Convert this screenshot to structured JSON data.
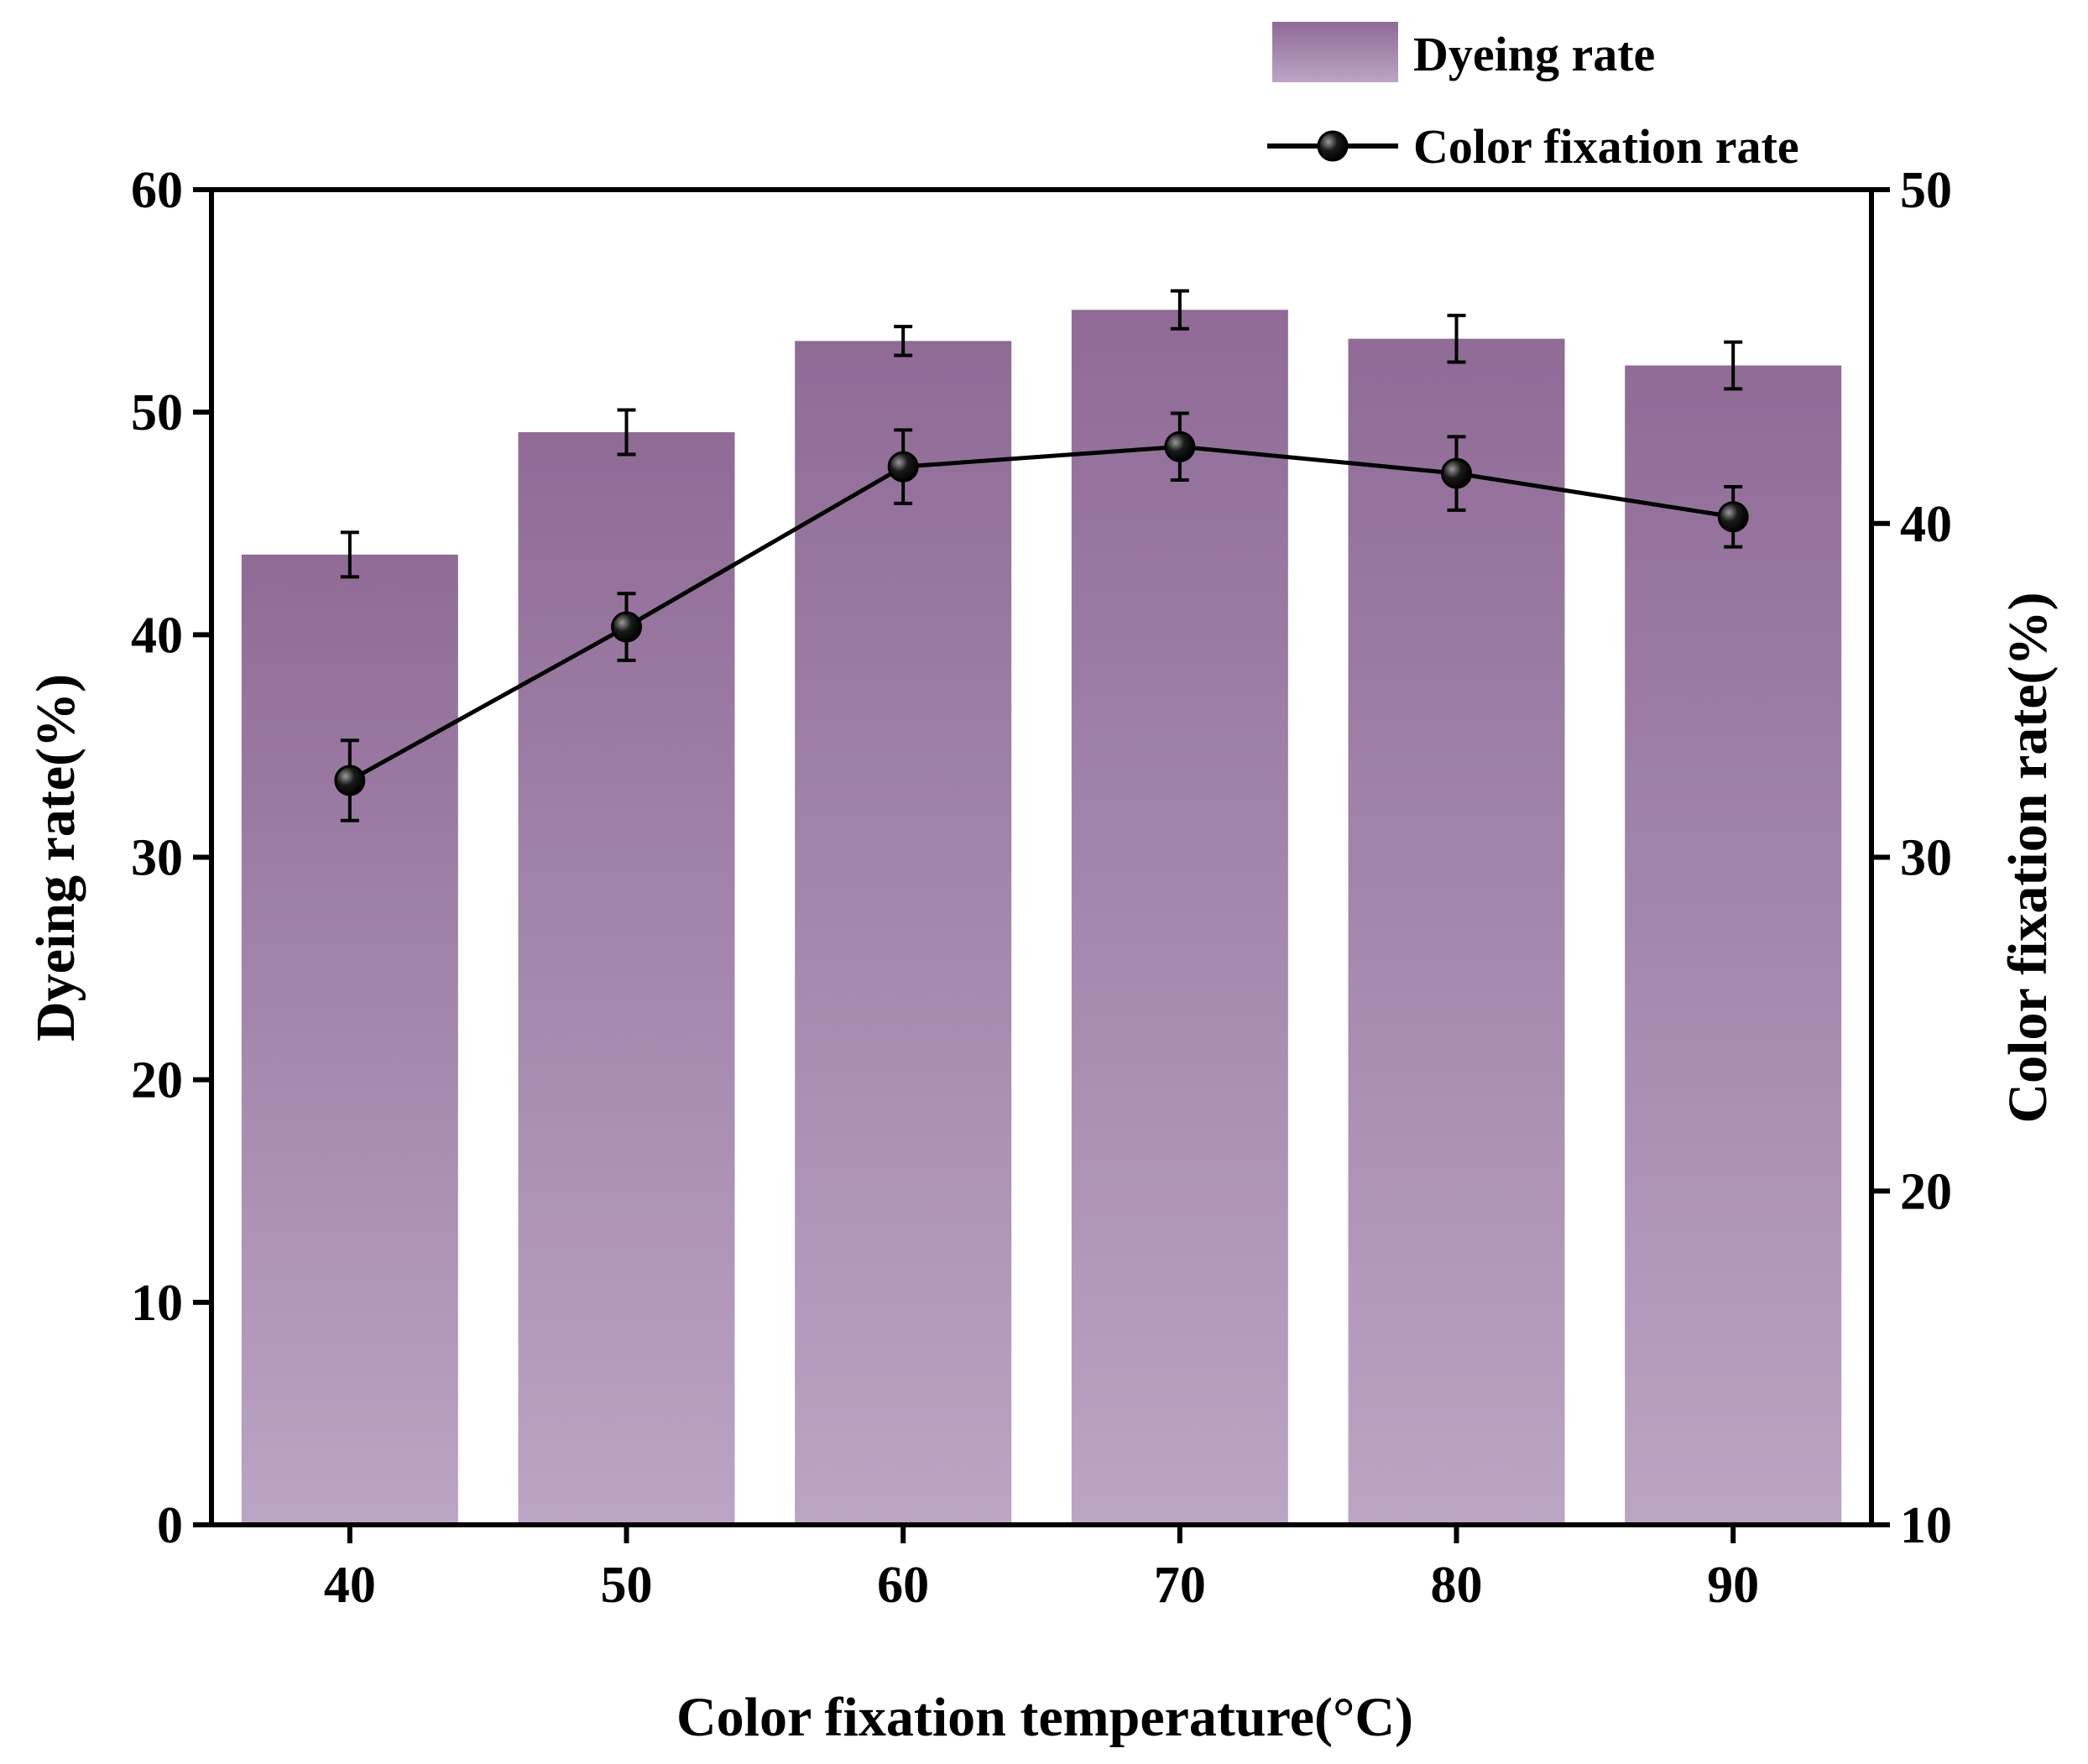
{
  "chart_data": {
    "type": "bar+line",
    "xlabel": "Color fixation temperature(°C)",
    "ylabel_left": "Dyeing rate(%)",
    "ylabel_right": "Color fixation rate(%)",
    "categories": [
      "40",
      "50",
      "60",
      "70",
      "80",
      "90"
    ],
    "ylim_left": [
      0,
      60
    ],
    "yticks_left": [
      "0",
      "10",
      "20",
      "30",
      "40",
      "50",
      "60"
    ],
    "ylim_right": [
      10,
      50
    ],
    "yticks_right": [
      "10",
      "20",
      "30",
      "40",
      "50"
    ],
    "series": [
      {
        "name": "Dyeing rate",
        "kind": "bar",
        "axis": "left",
        "values": [
          43.6,
          49.1,
          53.2,
          54.6,
          53.3,
          52.1
        ],
        "errors": [
          1.0,
          1.0,
          0.65,
          0.85,
          1.05,
          1.05
        ],
        "color_top": "#8f6b96",
        "color_bottom": "#bba4c4"
      },
      {
        "name": "Color fixation rate",
        "kind": "line",
        "axis": "right",
        "values": [
          32.3,
          36.9,
          41.7,
          42.3,
          41.5,
          40.2
        ],
        "errors": [
          1.2,
          1.0,
          1.1,
          1.0,
          1.1,
          0.9
        ],
        "color": "#000000"
      }
    ]
  }
}
